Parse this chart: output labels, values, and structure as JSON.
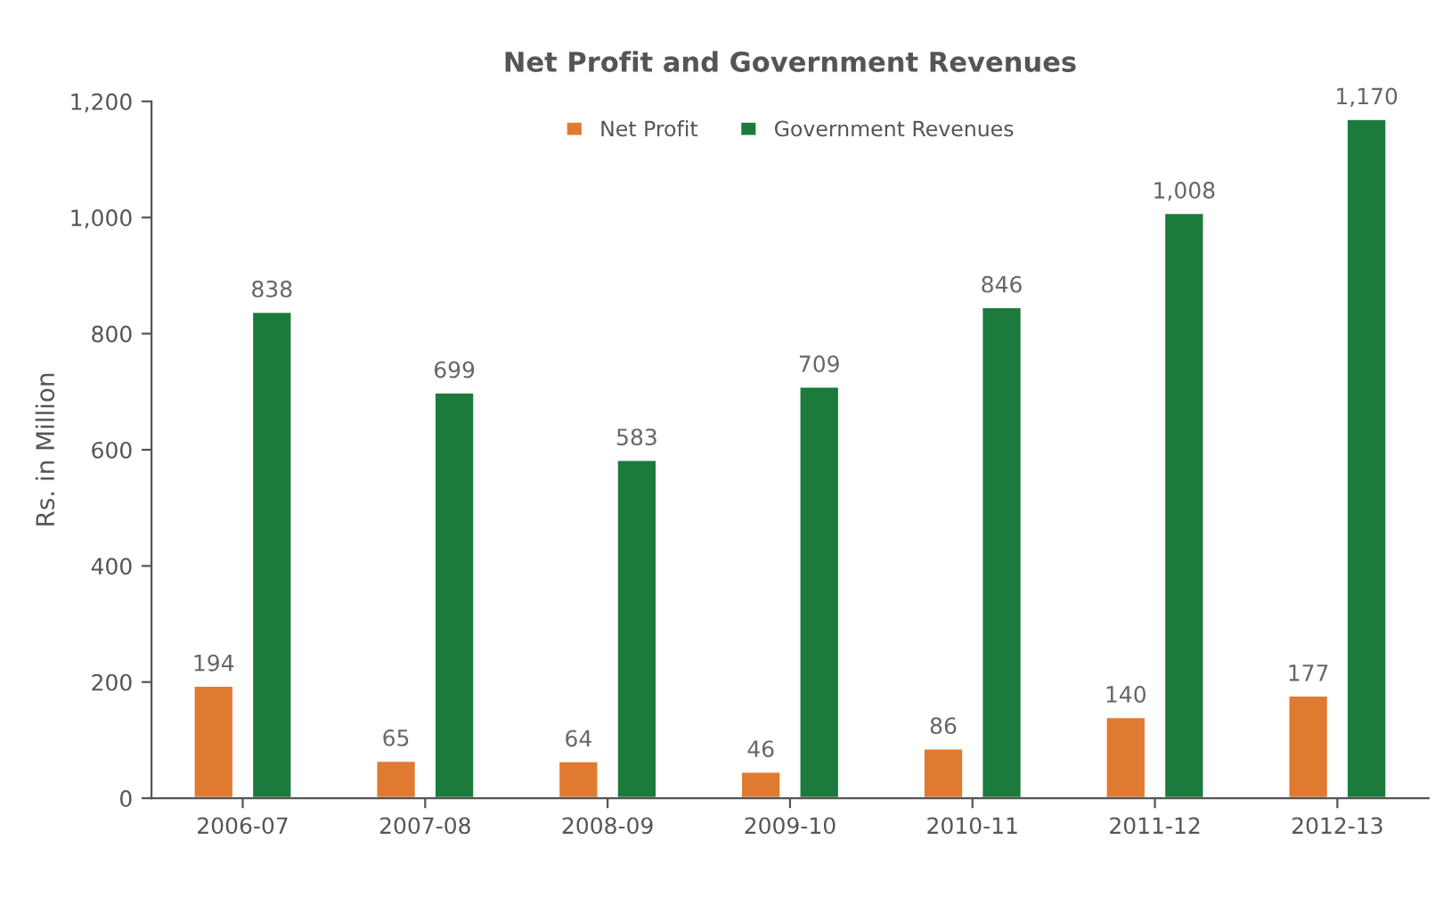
{
  "chart_data": {
    "type": "bar",
    "title": "Net Profit and Government Revenues",
    "ylabel": "Rs. in Million",
    "categories": [
      "2006-07",
      "2007-08",
      "2008-09",
      "2009-10",
      "2010-11",
      "2011-12",
      "2012-13"
    ],
    "series": [
      {
        "name": "Net Profit",
        "color": "#e07a30",
        "values": [
          194,
          65,
          64,
          46,
          86,
          140,
          177
        ],
        "value_labels": [
          "194",
          "65",
          "64",
          "46",
          "86",
          "140",
          "177"
        ]
      },
      {
        "name": "Government Revenues",
        "color": "#1b7a3c",
        "values": [
          838,
          699,
          583,
          709,
          846,
          1008,
          1170
        ],
        "value_labels": [
          "838",
          "699",
          "583",
          "709",
          "846",
          "1,008",
          "1,170"
        ]
      }
    ],
    "ylim": [
      0,
      1200
    ],
    "yticks": [
      0,
      {
        "value": 200,
        "label": "200"
      },
      {
        "value": 400,
        "label": "400"
      },
      {
        "value": 600,
        "label": "600"
      },
      {
        "value": 800,
        "label": "800"
      },
      {
        "value": 1000,
        "label": "1,000"
      },
      {
        "value": 1200,
        "label": "1,200"
      }
    ],
    "legend": "top",
    "grid": false
  }
}
